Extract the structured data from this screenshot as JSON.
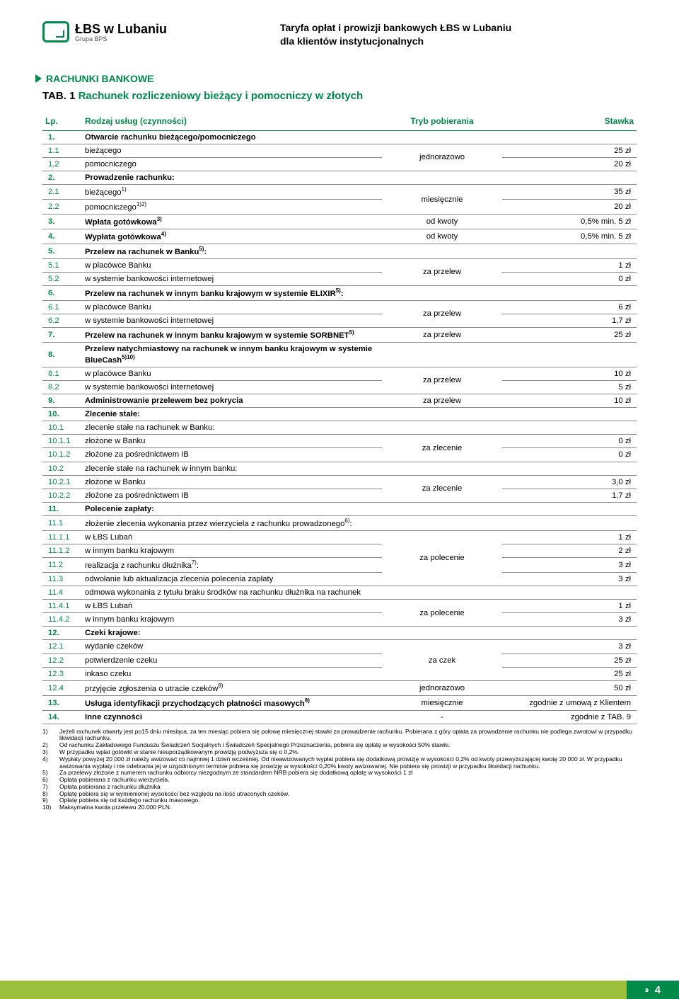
{
  "logo": {
    "line1": "ŁBS w Lubaniu",
    "line2": "Grupa BPS"
  },
  "doc_title_l1": "Taryfa opłat i prowizji bankowych  ŁBS w Lubaniu",
  "doc_title_l2": "dla klientów instytucjonalnych",
  "section": "RACHUNKI BANKOWE",
  "tab_prefix": "TAB. 1",
  "tab_title": "Rachunek rozliczeniowy bieżący i pomocniczy w złotych",
  "head": {
    "lp": "Lp.",
    "desc": "Rodzaj usług (czynności)",
    "mode": "Tryb pobierania",
    "rate": "Stawka"
  },
  "rows": [
    {
      "lp": "1.",
      "lpb": true,
      "desc": "Otwarcie rachunku bieżącego/pomocniczego",
      "descb": true
    },
    {
      "lp": "1.1",
      "desc": "bieżącego",
      "mode_span": 2,
      "mode": "jednorazowo",
      "rate": "25 zł"
    },
    {
      "lp": "1,2",
      "desc": "pomocniczego",
      "rate": "20 zł"
    },
    {
      "lp": "2.",
      "lpb": true,
      "desc": "Prowadzenie rachunku:",
      "descb": true
    },
    {
      "lp": "2.1",
      "desc": "bieżącego",
      "sup": "1)",
      "mode_span": 2,
      "mode": "miesięcznie",
      "rate": "35 zł"
    },
    {
      "lp": "2.2",
      "desc": "pomocniczego",
      "sup": "1)2)",
      "rate": "20 zł"
    },
    {
      "lp": "3.",
      "lpb": true,
      "desc": "Wpłata gotówkowa",
      "sup": "3)",
      "descb": true,
      "mode": "od kwoty",
      "rate": "0,5% min. 5 zł"
    },
    {
      "lp": "4.",
      "lpb": true,
      "desc": "Wypłata gotówkowa",
      "sup": "4)",
      "descb": true,
      "mode": "od kwoty",
      "rate": "0,5% min. 5 zł"
    },
    {
      "lp": "5.",
      "lpb": true,
      "desc": "Przelew na rachunek w Banku",
      "sup": "5)",
      "desc_suffix": ":",
      "descb": true
    },
    {
      "lp": "5.1",
      "desc": "w placówce Banku",
      "mode_span": 2,
      "mode": "za przelew",
      "rate": "1 zł"
    },
    {
      "lp": "5.2",
      "desc": "w systemie bankowości internetowej",
      "rate": "0 zł"
    },
    {
      "lp": "6.",
      "lpb": true,
      "desc": "Przelew na rachunek w innym banku krajowym w systemie ELIXIR",
      "sup": "5)",
      "desc_suffix": ":",
      "descb": true
    },
    {
      "lp": "6.1",
      "desc": "w placówce Banku",
      "mode_span": 2,
      "mode": "za przelew",
      "rate": "6 zł"
    },
    {
      "lp": "6.2",
      "desc": "w systemie bankowości internetowej",
      "rate": "1,7 zł"
    },
    {
      "lp": "7.",
      "lpb": true,
      "desc": "Przelew na rachunek w innym banku krajowym w systemie SORBNET",
      "sup": "5)",
      "descb": true,
      "mode": "za przelew",
      "rate": "25 zł"
    },
    {
      "lp": "8.",
      "lpb": true,
      "desc": "Przelew natychmiastowy na rachunek w innym banku krajowym w systemie BlueCash",
      "sup": "5)10)",
      "descb": true
    },
    {
      "lp": "8.1",
      "desc": "w placówce Banku",
      "mode_span": 2,
      "mode": "za przelew",
      "rate": "10 zł"
    },
    {
      "lp": "8.2",
      "desc": "w systemie bankowości internetowej",
      "rate": "5 zł"
    },
    {
      "lp": "9.",
      "lpb": true,
      "desc": "Administrowanie przelewem bez pokrycia",
      "descb": true,
      "mode": "za przelew",
      "rate": "10 zł"
    },
    {
      "lp": "10.",
      "lpb": true,
      "desc": "Zlecenie stałe:",
      "descb": true
    },
    {
      "lp": "10.1",
      "desc": "zlecenie stałe na rachunek w Banku:"
    },
    {
      "lp": "10.1.1",
      "desc": "złożone w Banku",
      "mode_span": 2,
      "mode": "za zlecenie",
      "rate": "0 zł"
    },
    {
      "lp": "10.1.2",
      "desc": "złożone za pośrednictwem IB",
      "rate": "0 zł"
    },
    {
      "lp": "10.2",
      "desc": "zlecenie stałe na rachunek w innym banku:"
    },
    {
      "lp": "10.2.1",
      "desc": "złożone w Banku",
      "mode_span": 2,
      "mode": "za zlecenie",
      "rate": "3,0 zł"
    },
    {
      "lp": "10.2.2",
      "desc": "złożone za pośrednictwem IB",
      "rate": "1,7 zł"
    },
    {
      "lp": "11.",
      "lpb": true,
      "desc": "Polecenie zapłaty:",
      "descb": true
    },
    {
      "lp": "11.1",
      "desc": "złożenie zlecenia wykonania przez wierzyciela z rachunku prowadzonego",
      "sup": "6)",
      "desc_suffix": ":"
    },
    {
      "lp": "11.1.1",
      "desc": "w ŁBS Lubań",
      "mode_span": 4,
      "mode": "za polecenie",
      "rate": "1 zł"
    },
    {
      "lp": "11.1.2",
      "desc": "w innym banku krajowym",
      "rate": "2 zł"
    },
    {
      "lp": "11.2",
      "desc": "realizacja z rachunku dłużnika",
      "sup": "7)",
      "desc_suffix": ":",
      "rate": "3 zł"
    },
    {
      "lp": "11.3",
      "desc": "odwołanie lub aktualizacja zlecenia polecenia zapłaty",
      "rate": "3 zł"
    },
    {
      "lp": "11.4",
      "desc": "odmowa wykonania z tytułu braku środków na rachunku dłużnika na rachunek"
    },
    {
      "lp": "11.4.1",
      "desc": "w ŁBS Lubań",
      "mode_span": 2,
      "mode": "za polecenie",
      "rate": "1 zł"
    },
    {
      "lp": "11.4.2",
      "desc": "w innym banku krajowym",
      "rate": "3 zł"
    },
    {
      "lp": "12.",
      "lpb": true,
      "desc": "Czeki krajowe:",
      "descb": true
    },
    {
      "lp": "12.1",
      "desc": "wydanie czeków",
      "mode_span": 3,
      "mode": "za czek",
      "rate": "3 zł"
    },
    {
      "lp": "12.2",
      "desc": "potwierdzenie czeku",
      "rate": "25 zł"
    },
    {
      "lp": "12.3",
      "desc": "inkaso czeku",
      "rate": "25 zł"
    },
    {
      "lp": "12.4",
      "desc": "przyjęcie zgłoszenia o utracie czeków",
      "sup": "8)",
      "mode": "jednorazowo",
      "rate": "50 zł"
    },
    {
      "lp": "13.",
      "lpb": true,
      "desc": "Usługa identyfikacji przychodzących płatności masowych",
      "sup": "9)",
      "descb": true,
      "mode": "miesięcznie",
      "rate": "zgodnie z umową z Klientem"
    },
    {
      "lp": "14.",
      "lpb": true,
      "desc": "Inne czynności",
      "descb": true,
      "mode": "-",
      "rate": "zgodnie z TAB. 9"
    }
  ],
  "footnotes": [
    {
      "n": "1)",
      "t": "Jeżeli rachunek otwarty jest po15 dniu miesiąca, za ten miesiąc pobiera się połowę miesięcznej stawki za prowadzenie rachunku. Pobierana z góry opłata za prowadzenie rachunku  nie podlega zwrotowi  w przypadku likwidacji rachunku."
    },
    {
      "n": "2)",
      "t": "Od rachunku Zakładowego Funduszu Świadczeń Socjalnych i Świadczeń Specjalnego Przeznaczenia, pobiera się opłatę w wysokości 50% stawki."
    },
    {
      "n": "3)",
      "t": "W przypadku wpłat gotówki w stanie nieuporządkowanym prowizję podwyższa się o 0,2%."
    },
    {
      "n": "4)",
      "t": "Wypłaty powyżej 20 000 zł należy awizować co najmniej 1 dzień wcześniej. Od nieawizowanych wypłat pobiera się dodatkową prowizję w wysokości 0,2% od kwoty przewyższającej kwotę 20 000 zł. W przypadku awizowania wypłaty i nie odebrania jej w uzgodnionym terminie pobiera się prowizję w wysokości 0,20% kwoty awizowanej. Nie pobiera się prowizji w przypadku likwidacji rachunku."
    },
    {
      "n": "5)",
      "t": "Za przelewy złożone z numerem rachunku odbiorcy niezgodnym ze standardem NRB pobiera się dodatkową opłatę w wysokości 1 zł"
    },
    {
      "n": "6)",
      "t": "Opłata pobierana z rachunku wierzyciela."
    },
    {
      "n": "7)",
      "t": "Opłata pobierana z rachunku dłużnika"
    },
    {
      "n": "8)",
      "t": "Opłatę pobiera się w wymienionej wysokości bez względu na ilość utraconych czeków."
    },
    {
      "n": "9)",
      "t": "Opłatę pobiera się od każdego rachunku masowego."
    },
    {
      "n": "10)",
      "t": "Maksymalna kwota przelewu 20.000 PLN."
    }
  ],
  "page_number": "4",
  "colors": {
    "green": "#008a4a",
    "lime": "#9bbf3b"
  }
}
